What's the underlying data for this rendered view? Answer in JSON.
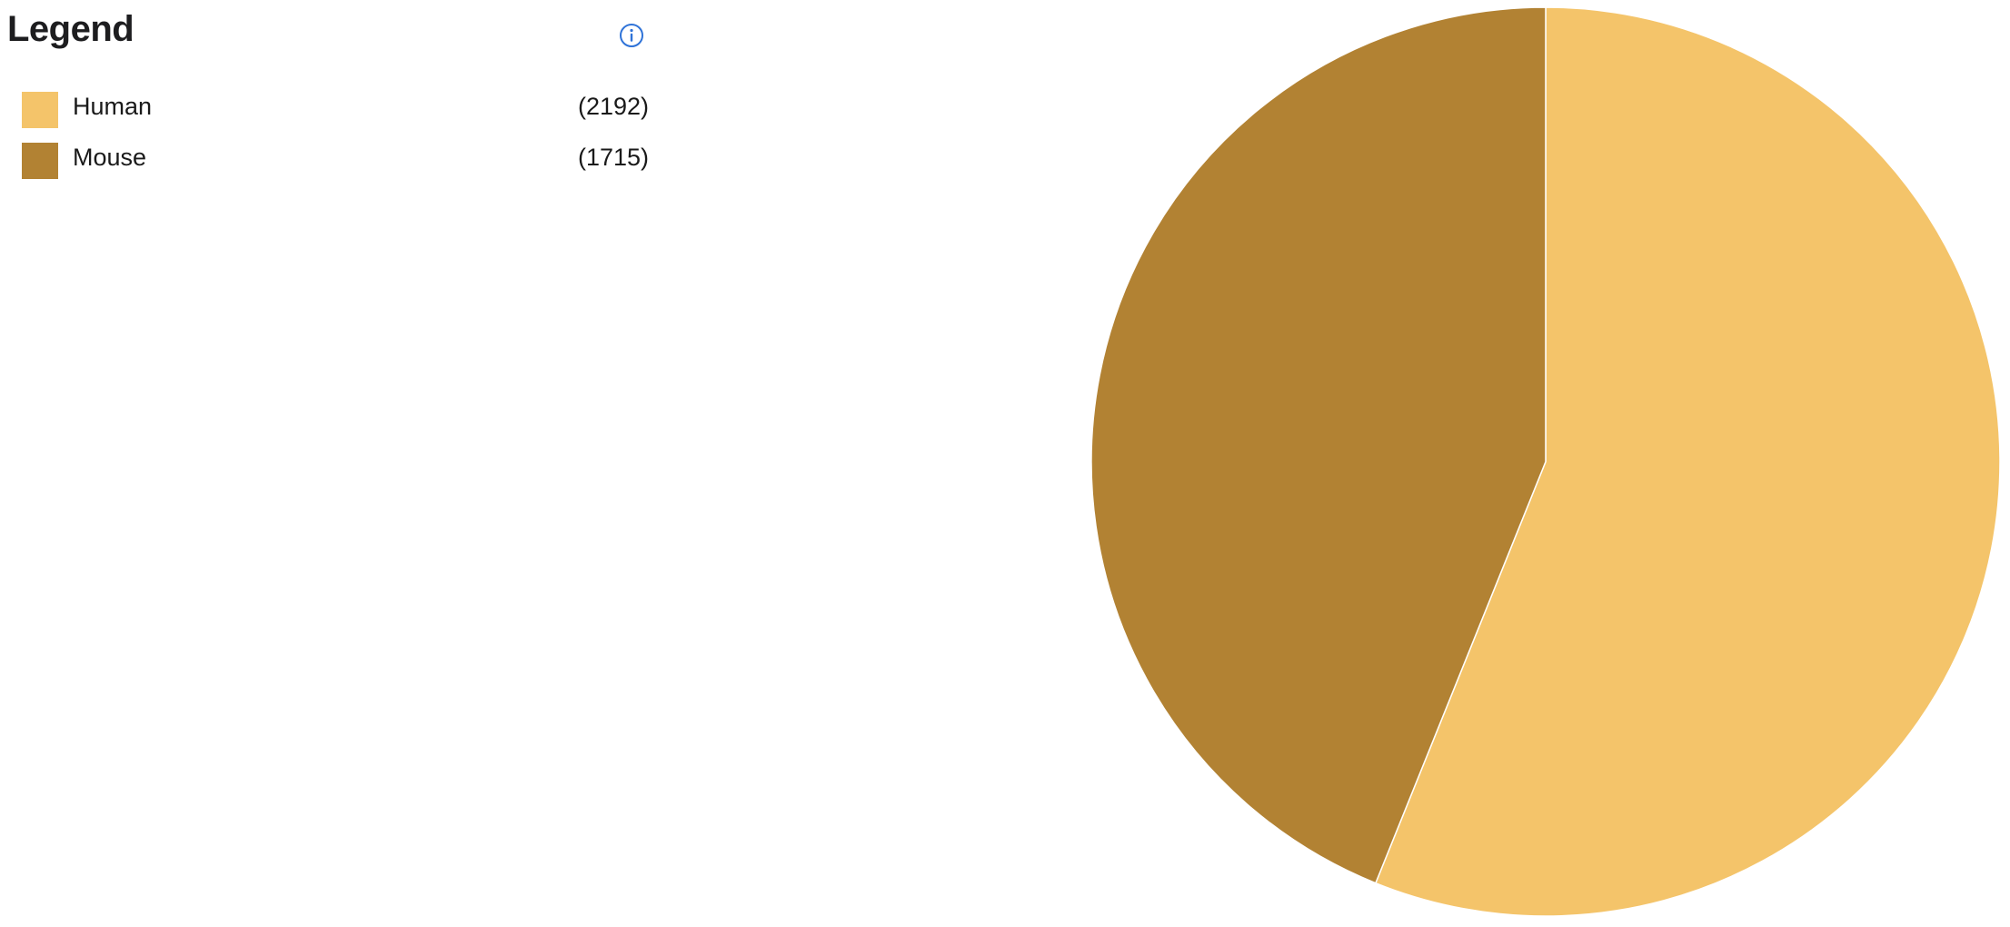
{
  "legend": {
    "title": "Legend",
    "info_icon": "info-circle-icon",
    "items": [
      {
        "label": "Human",
        "count": "(2192)",
        "color": "#f4c46a"
      },
      {
        "label": "Mouse",
        "count": "(1715)",
        "color": "#b28233"
      }
    ]
  },
  "chart_data": {
    "type": "pie",
    "categories": [
      "Human",
      "Mouse"
    ],
    "values": [
      2192,
      1715
    ],
    "colors": [
      "#f4c46a",
      "#b28233"
    ],
    "slice_border_color": "#ffffff",
    "start_angle": "12 o'clock",
    "direction": "clockwise",
    "legend_position": "left"
  }
}
